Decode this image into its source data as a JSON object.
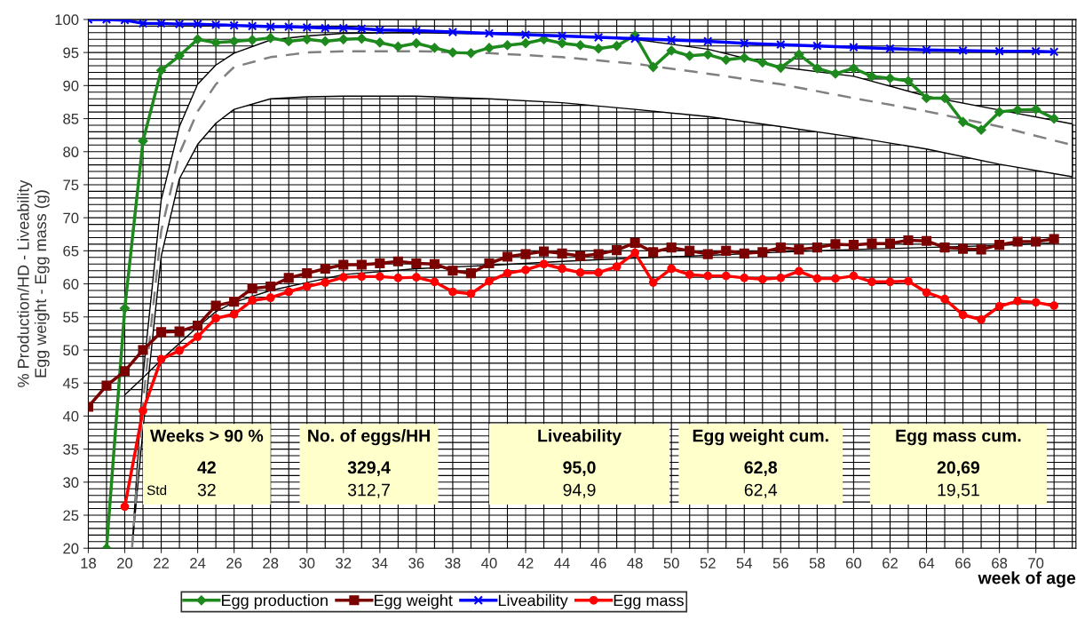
{
  "chart_data": {
    "type": "line",
    "xlabel": "week of age",
    "ylabel": "% Production/HD - Liveability\nEgg weight - Egg mass (g)",
    "xlim": [
      18,
      72.2
    ],
    "ylim": [
      20,
      100
    ],
    "xticks": [
      18,
      20,
      22,
      24,
      26,
      28,
      30,
      32,
      34,
      36,
      38,
      40,
      42,
      44,
      46,
      48,
      50,
      52,
      54,
      56,
      58,
      60,
      62,
      64,
      66,
      68,
      70
    ],
    "yticks": [
      20,
      25,
      30,
      35,
      40,
      45,
      50,
      55,
      60,
      65,
      70,
      75,
      80,
      85,
      90,
      95,
      100
    ],
    "grid": true,
    "legend": "bottom",
    "series": [
      {
        "type": "line",
        "color": "#808080",
        "line_style": "dashed",
        "marker": "none",
        "x": [
          20.4,
          21,
          22,
          23,
          24,
          25,
          26,
          28,
          30,
          32,
          36,
          40,
          44,
          48,
          52,
          56,
          60,
          64,
          68,
          72
        ],
        "values": [
          20,
          42,
          68,
          79.7,
          86.1,
          90.2,
          92.8,
          94.3,
          95,
          95.2,
          95.2,
          94.9,
          94.3,
          93.3,
          91.8,
          90.2,
          88.1,
          86.1,
          83.8,
          81
        ],
        "lower": [
          20,
          38,
          64.2,
          75.9,
          81.1,
          84.3,
          86.4,
          88,
          88.3,
          88.4,
          88.4,
          88,
          87.4,
          86.4,
          85.3,
          83.8,
          82.2,
          80.4,
          78.1,
          76.2
        ],
        "upper": [
          20,
          46,
          72.7,
          83.8,
          90.2,
          93.1,
          94.9,
          96.9,
          97.5,
          97.9,
          98,
          97.8,
          97.5,
          97,
          95.5,
          92.8,
          91.4,
          88.4,
          86.3,
          84.2
        ]
      },
      {
        "type": "line",
        "color": "#000000",
        "marker": "none",
        "x": [
          20,
          21,
          22,
          23,
          24,
          25,
          26,
          28,
          30,
          32,
          36,
          40,
          44,
          48,
          52,
          56,
          60,
          64,
          68,
          71
        ],
        "values": [
          43.2,
          45.8,
          48.5,
          51,
          53.5,
          55.8,
          57.2,
          59,
          60.2,
          61.4,
          62.3,
          62.8,
          63.4,
          63.9,
          64.3,
          64.8,
          65.2,
          65.5,
          65.8,
          66.2
        ]
      },
      {
        "name": "Egg production",
        "color": "#1e8a1e",
        "marker": "diamond",
        "x": [
          19,
          20,
          21,
          22,
          23,
          24,
          25,
          26,
          27,
          28,
          29,
          30,
          31,
          32,
          33,
          34,
          35,
          36,
          37,
          38,
          39,
          40,
          41,
          42,
          43,
          44,
          45,
          46,
          47,
          48,
          49,
          50,
          51,
          52,
          53,
          54,
          55,
          56,
          57,
          58,
          59,
          60,
          61,
          62,
          63,
          64,
          65,
          66,
          67,
          68,
          69,
          70,
          71
        ],
        "values": [
          20,
          56.3,
          81.6,
          92.3,
          94.5,
          97,
          96.5,
          96.7,
          96.9,
          97.2,
          96.7,
          97,
          96.7,
          97,
          97.1,
          96.5,
          95.9,
          96.4,
          95.7,
          95,
          94.9,
          95.7,
          96.1,
          96.4,
          97,
          96.4,
          96.1,
          95.6,
          96,
          97.6,
          92.8,
          95.3,
          94.5,
          94.7,
          93.9,
          94.2,
          93.5,
          92.7,
          94.7,
          92.6,
          91.8,
          92.6,
          91.4,
          91.1,
          90.7,
          88.1,
          88.1,
          84.5,
          83.3,
          86,
          86.3,
          86.4,
          85
        ]
      },
      {
        "name": "Egg weight",
        "color": "#7b0000",
        "marker": "square",
        "x": [
          18,
          19,
          20,
          21,
          22,
          23,
          24,
          25,
          26,
          27,
          28,
          29,
          30,
          31,
          32,
          33,
          34,
          35,
          36,
          37,
          38,
          39,
          40,
          41,
          42,
          43,
          44,
          45,
          46,
          47,
          48,
          49,
          50,
          51,
          52,
          53,
          54,
          55,
          56,
          57,
          58,
          59,
          60,
          61,
          62,
          63,
          64,
          65,
          66,
          67,
          68,
          69,
          70,
          71
        ],
        "values": [
          41.4,
          44.6,
          46.8,
          50,
          52.7,
          52.8,
          53.7,
          56.7,
          57.3,
          59.3,
          59.6,
          60.9,
          61.6,
          62.3,
          62.9,
          62.9,
          63.1,
          63.4,
          63.1,
          63,
          62,
          61.6,
          63.1,
          64.1,
          64.5,
          64.9,
          64.6,
          64.2,
          64.5,
          65.1,
          66.2,
          64.8,
          65.5,
          65,
          64.5,
          65,
          64.6,
          64.8,
          65.5,
          65.2,
          65.5,
          66,
          65.9,
          66.1,
          66.1,
          66.6,
          66.5,
          65.5,
          65.3,
          65.2,
          65.9,
          66.4,
          66.4,
          66.8
        ]
      },
      {
        "name": "Liveability",
        "color": "#0000ff",
        "marker": "cross",
        "x": [
          18,
          19,
          20,
          21,
          22,
          23,
          24,
          25,
          26,
          27,
          28,
          29,
          30,
          31,
          32,
          33,
          34,
          36,
          38,
          40,
          42,
          44,
          46,
          48,
          50,
          52,
          54,
          56,
          58,
          60,
          62,
          64,
          66,
          68,
          70,
          71
        ],
        "values": [
          100,
          100,
          99.9,
          99.4,
          99.4,
          99.3,
          99.3,
          99.2,
          99.1,
          99,
          98.9,
          98.9,
          98.8,
          98.7,
          98.7,
          98.6,
          98.4,
          98.3,
          98.1,
          97.9,
          97.7,
          97.5,
          97.3,
          97.1,
          96.9,
          96.7,
          96.4,
          96.2,
          96,
          95.8,
          95.6,
          95.4,
          95.3,
          95.2,
          95.2,
          95.1
        ]
      },
      {
        "name": "Egg mass",
        "color": "#ff0000",
        "marker": "circle",
        "x": [
          20,
          21,
          22,
          23,
          24,
          25,
          26,
          27,
          28,
          29,
          30,
          31,
          32,
          33,
          34,
          35,
          36,
          37,
          38,
          39,
          40,
          41,
          42,
          43,
          44,
          45,
          46,
          47,
          48,
          49,
          50,
          51,
          52,
          53,
          54,
          55,
          56,
          57,
          58,
          59,
          60,
          61,
          62,
          63,
          64,
          65,
          66,
          67,
          68,
          69,
          70,
          71
        ],
        "values": [
          26.3,
          40.8,
          48.6,
          49.9,
          52,
          54.8,
          55.4,
          57.5,
          57.9,
          58.8,
          59.6,
          60.2,
          61,
          61.1,
          61.1,
          60.9,
          61,
          60.3,
          58.8,
          58.5,
          60.4,
          61.6,
          62.1,
          63,
          62.3,
          61.7,
          61.7,
          62.6,
          64.7,
          60.2,
          62.3,
          61.4,
          61.2,
          61.2,
          60.9,
          60.7,
          60.9,
          61.9,
          60.8,
          60.8,
          61.2,
          60.3,
          60.3,
          60.4,
          58.7,
          57.7,
          55.3,
          54.6,
          56.6,
          57.4,
          57.2,
          56.7
        ]
      }
    ],
    "annotations": [
      "Weeks > 90 %",
      "42",
      "32",
      "No. of eggs/HH",
      "329,4",
      "312,7",
      "Liveability",
      "95,0",
      "94,9",
      "Egg weight cum.",
      "62,8",
      "62,4",
      "Egg mass cum.",
      "20,69",
      "19,51",
      "Std"
    ]
  }
}
